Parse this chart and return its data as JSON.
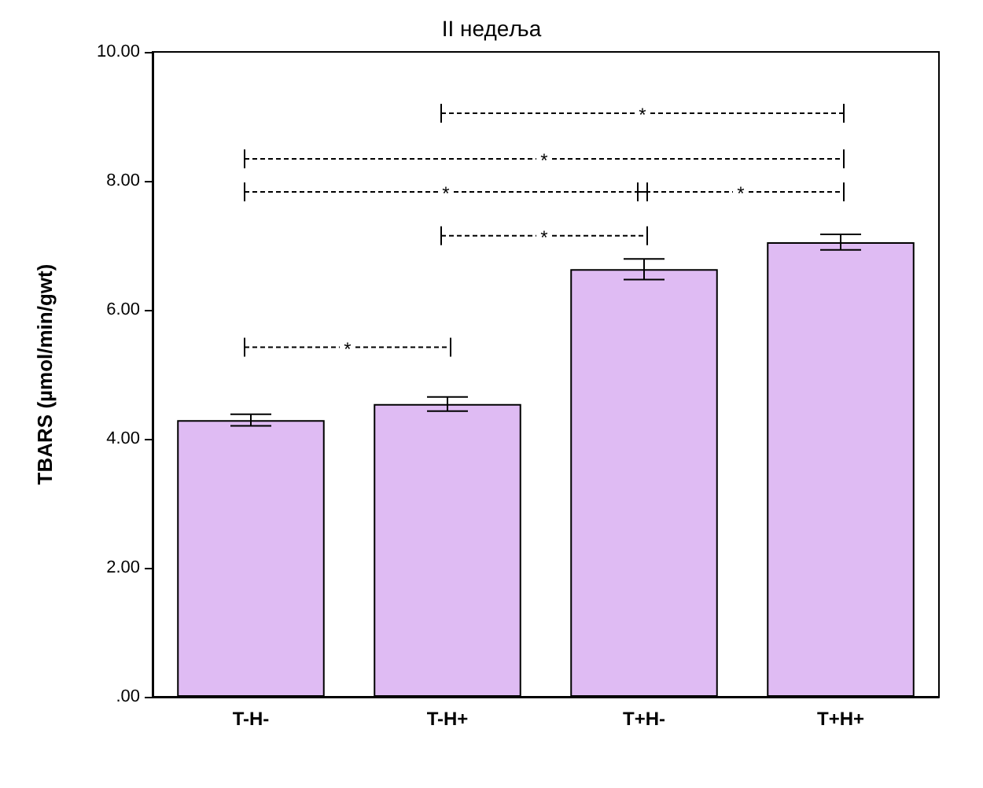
{
  "chart_data": {
    "type": "bar",
    "title": "II недеља",
    "ylabel": "TBARS (µmol/min/gwt)",
    "categories": [
      "T-H-",
      "T-H+",
      "T+H-",
      "T+H+"
    ],
    "series": [
      {
        "color": "#dfbbf3",
        "values": [
          4.29,
          4.54,
          6.63,
          7.05
        ],
        "errors": [
          0.09,
          0.11,
          0.16,
          0.12
        ]
      }
    ],
    "ylim": [
      0,
      10
    ],
    "yticks": [
      {
        "value": 0,
        "label": ".00"
      },
      {
        "value": 2,
        "label": "2.00"
      },
      {
        "value": 4,
        "label": "4.00"
      },
      {
        "value": 6,
        "label": "6.00"
      },
      {
        "value": 8,
        "label": "8.00"
      },
      {
        "value": 10,
        "label": "10.00"
      }
    ],
    "grid": false,
    "annotations": [
      "*",
      "*",
      "*",
      "*",
      "*",
      "*"
    ]
  }
}
